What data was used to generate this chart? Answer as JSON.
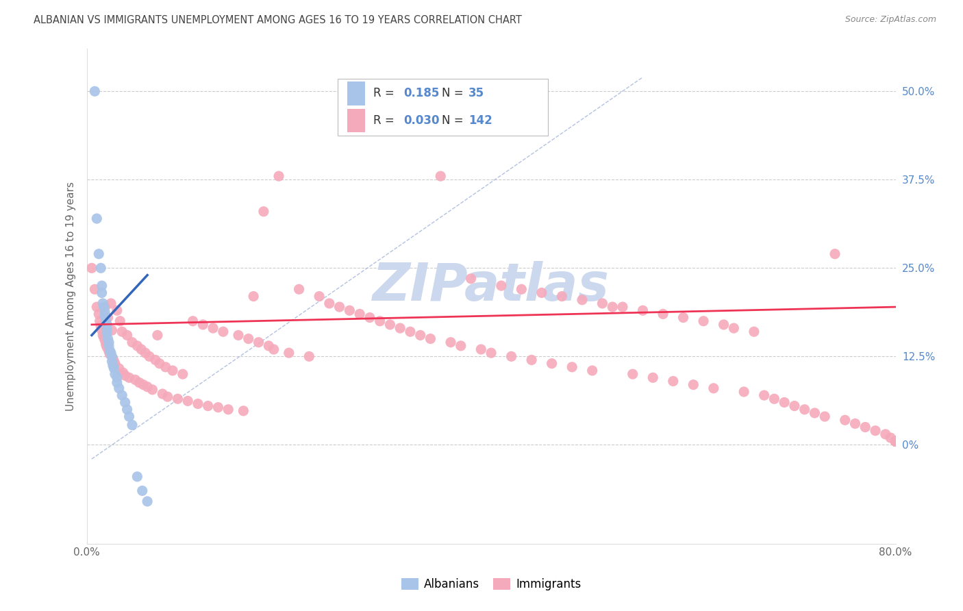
{
  "title": "ALBANIAN VS IMMIGRANTS UNEMPLOYMENT AMONG AGES 16 TO 19 YEARS CORRELATION CHART",
  "source": "Source: ZipAtlas.com",
  "ylabel": "Unemployment Among Ages 16 to 19 years",
  "albanians_R": "0.185",
  "albanians_N": "35",
  "immigrants_R": "0.030",
  "immigrants_N": "142",
  "albanian_color": "#a8c4e8",
  "immigrant_color": "#f5aabb",
  "albanian_line_color": "#3366bb",
  "immigrant_line_color": "#ee3355",
  "dashed_line_color": "#aabbdd",
  "background_color": "#ffffff",
  "grid_color": "#cccccc",
  "title_color": "#444444",
  "label_color": "#5588cc",
  "watermark_color": "#ccd8ee",
  "ytick_vals": [
    0.0,
    0.125,
    0.25,
    0.375,
    0.5
  ],
  "ytick_labels": [
    "0%",
    "12.5%",
    "25.0%",
    "37.5%",
    "50.0%"
  ],
  "xlim": [
    0.0,
    0.8
  ],
  "ylim": [
    -0.14,
    0.56
  ],
  "alb_x": [
    0.008,
    0.01,
    0.012,
    0.014,
    0.015,
    0.015,
    0.016,
    0.017,
    0.018,
    0.018,
    0.019,
    0.02,
    0.02,
    0.02,
    0.021,
    0.022,
    0.022,
    0.023,
    0.024,
    0.025,
    0.025,
    0.026,
    0.027,
    0.028,
    0.03,
    0.03,
    0.032,
    0.035,
    0.038,
    0.04,
    0.042,
    0.045,
    0.05,
    0.055,
    0.06
  ],
  "alb_y": [
    0.5,
    0.32,
    0.27,
    0.25,
    0.225,
    0.215,
    0.2,
    0.195,
    0.188,
    0.182,
    0.175,
    0.17,
    0.163,
    0.158,
    0.15,
    0.145,
    0.14,
    0.133,
    0.13,
    0.125,
    0.118,
    0.112,
    0.108,
    0.1,
    0.095,
    0.088,
    0.08,
    0.07,
    0.06,
    0.05,
    0.04,
    0.028,
    -0.045,
    -0.065,
    -0.08
  ],
  "imm_x": [
    0.005,
    0.008,
    0.01,
    0.012,
    0.013,
    0.014,
    0.015,
    0.016,
    0.017,
    0.018,
    0.018,
    0.019,
    0.02,
    0.021,
    0.022,
    0.023,
    0.024,
    0.025,
    0.026,
    0.027,
    0.028,
    0.03,
    0.032,
    0.033,
    0.035,
    0.036,
    0.038,
    0.04,
    0.042,
    0.045,
    0.048,
    0.05,
    0.052,
    0.054,
    0.056,
    0.058,
    0.06,
    0.062,
    0.065,
    0.068,
    0.07,
    0.072,
    0.075,
    0.078,
    0.08,
    0.085,
    0.09,
    0.095,
    0.1,
    0.105,
    0.11,
    0.115,
    0.12,
    0.125,
    0.13,
    0.135,
    0.14,
    0.15,
    0.155,
    0.16,
    0.165,
    0.17,
    0.175,
    0.18,
    0.185,
    0.19,
    0.2,
    0.21,
    0.22,
    0.23,
    0.24,
    0.25,
    0.26,
    0.27,
    0.28,
    0.29,
    0.3,
    0.31,
    0.32,
    0.33,
    0.34,
    0.35,
    0.36,
    0.37,
    0.38,
    0.39,
    0.4,
    0.41,
    0.42,
    0.43,
    0.44,
    0.45,
    0.46,
    0.47,
    0.48,
    0.49,
    0.5,
    0.51,
    0.52,
    0.53,
    0.54,
    0.55,
    0.56,
    0.57,
    0.58,
    0.59,
    0.6,
    0.61,
    0.62,
    0.63,
    0.64,
    0.65,
    0.66,
    0.67,
    0.68,
    0.69,
    0.7,
    0.71,
    0.72,
    0.73,
    0.74,
    0.75,
    0.76,
    0.77,
    0.78,
    0.79,
    0.795,
    0.8,
    0.8,
    0.8,
    0.8,
    0.8,
    0.8,
    0.8,
    0.8,
    0.8,
    0.8,
    0.8,
    0.8,
    0.8,
    0.8,
    0.8
  ],
  "imm_y": [
    0.25,
    0.22,
    0.195,
    0.185,
    0.175,
    0.168,
    0.162,
    0.155,
    0.152,
    0.148,
    0.195,
    0.142,
    0.138,
    0.18,
    0.132,
    0.128,
    0.2,
    0.162,
    0.122,
    0.118,
    0.115,
    0.19,
    0.108,
    0.175,
    0.16,
    0.102,
    0.098,
    0.155,
    0.095,
    0.145,
    0.092,
    0.14,
    0.088,
    0.135,
    0.085,
    0.13,
    0.082,
    0.125,
    0.078,
    0.12,
    0.155,
    0.115,
    0.072,
    0.11,
    0.068,
    0.105,
    0.065,
    0.1,
    0.062,
    0.175,
    0.058,
    0.17,
    0.055,
    0.165,
    0.053,
    0.16,
    0.05,
    0.155,
    0.048,
    0.15,
    0.21,
    0.145,
    0.33,
    0.14,
    0.135,
    0.38,
    0.13,
    0.22,
    0.125,
    0.21,
    0.2,
    0.195,
    0.19,
    0.185,
    0.18,
    0.175,
    0.17,
    0.165,
    0.16,
    0.155,
    0.15,
    0.38,
    0.145,
    0.14,
    0.235,
    0.135,
    0.13,
    0.225,
    0.125,
    0.22,
    0.12,
    0.215,
    0.115,
    0.21,
    0.11,
    0.205,
    0.105,
    0.2,
    0.195,
    0.195,
    0.1,
    0.19,
    0.095,
    0.185,
    0.09,
    0.18,
    0.085,
    0.175,
    0.08,
    0.17,
    0.165,
    0.075,
    0.16,
    0.07,
    0.065,
    0.06,
    0.055,
    0.05,
    0.045,
    0.04,
    0.27,
    0.035,
    0.03,
    0.025,
    0.02,
    0.015,
    0.01,
    0.005,
    0.005,
    0.005,
    0.005,
    0.005,
    0.005,
    0.005,
    0.005,
    0.005,
    0.005,
    0.005,
    0.005,
    0.005,
    0.005,
    0.005
  ],
  "alb_trend_x": [
    0.005,
    0.06
  ],
  "alb_trend_y": [
    0.155,
    0.24
  ],
  "imm_trend_x": [
    0.005,
    0.8
  ],
  "imm_trend_y": [
    0.17,
    0.195
  ]
}
